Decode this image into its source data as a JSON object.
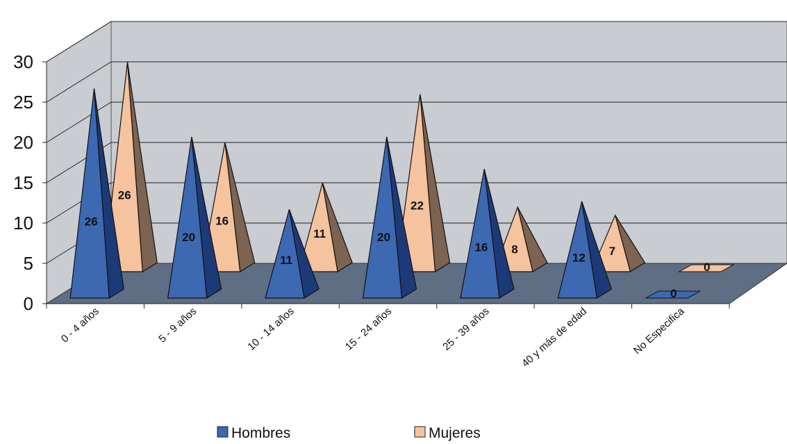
{
  "chart_data": {
    "type": "bar",
    "style": "3d-pyramid",
    "categories": [
      "0 - 4 años",
      "5 - 9 años",
      "10 - 14 años",
      "15 - 24 años",
      "25 - 39 años",
      "40 y más de edad",
      "No Especifica"
    ],
    "series": [
      {
        "name": "Hombres",
        "values": [
          26,
          20,
          11,
          20,
          16,
          12,
          0
        ]
      },
      {
        "name": "Mujeres",
        "values": [
          26,
          16,
          11,
          22,
          8,
          7,
          0
        ]
      }
    ],
    "yticks": [
      "0",
      "5",
      "10",
      "15",
      "20",
      "25",
      "30"
    ],
    "ylim": [
      0,
      30
    ],
    "grid": true,
    "legend": "bottom",
    "colors": {
      "hombres_front": "#3d68b2",
      "hombres_side": "#1d3a78",
      "mujeres_front": "#f6c39f",
      "mujeres_side": "#7d6351",
      "wall": "#c9ccd1",
      "floor": "#5e6e84",
      "grid": "#222222"
    }
  }
}
